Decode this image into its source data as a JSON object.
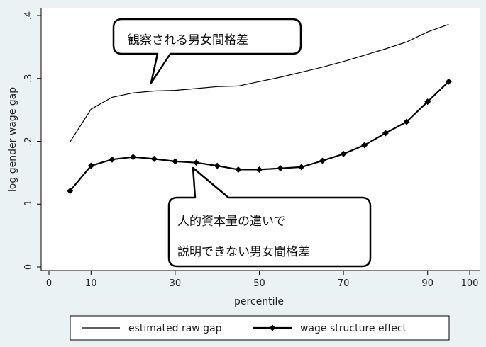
{
  "chart_data": {
    "type": "line",
    "xlabel": "percentile",
    "ylabel": "log gender wage gap",
    "xlim": [
      0,
      100
    ],
    "ylim": [
      0,
      0.4
    ],
    "x_ticks": [
      0,
      10,
      30,
      50,
      70,
      90,
      100
    ],
    "x_tick_labels": [
      "0",
      "10",
      "30",
      "50",
      "70",
      "90",
      "100"
    ],
    "y_ticks": [
      0,
      0.1,
      0.2,
      0.3,
      0.4
    ],
    "y_tick_labels": [
      "0",
      ".1",
      ".2",
      ".3",
      ".4"
    ],
    "grid": false,
    "legend_position": "bottom",
    "x": [
      5,
      10,
      15,
      20,
      25,
      30,
      35,
      40,
      45,
      50,
      55,
      60,
      65,
      70,
      75,
      80,
      85,
      90,
      95
    ],
    "series": [
      {
        "name": "estimated raw gap",
        "marker": "none",
        "values": [
          0.199,
          0.251,
          0.27,
          0.277,
          0.28,
          0.281,
          0.284,
          0.287,
          0.288,
          0.295,
          0.302,
          0.31,
          0.318,
          0.327,
          0.337,
          0.347,
          0.358,
          0.374,
          0.386
        ]
      },
      {
        "name": "wage structure effect",
        "marker": "diamond",
        "values": [
          0.121,
          0.161,
          0.171,
          0.175,
          0.172,
          0.168,
          0.166,
          0.161,
          0.155,
          0.155,
          0.157,
          0.159,
          0.169,
          0.18,
          0.194,
          0.213,
          0.231,
          0.263,
          0.295
        ]
      }
    ],
    "annotations": [
      {
        "lines": [
          "観察される男女間格差"
        ],
        "target_series": "estimated raw gap"
      },
      {
        "lines": [
          "人的資本量の違いで",
          "説明できない男女間格差"
        ],
        "target_series": "wage structure effect"
      }
    ]
  }
}
